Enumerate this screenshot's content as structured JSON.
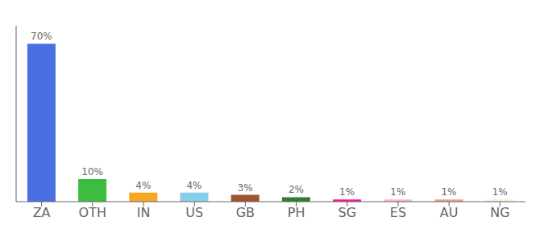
{
  "chart_data": {
    "type": "bar",
    "categories": [
      "ZA",
      "OTH",
      "IN",
      "US",
      "GB",
      "PH",
      "SG",
      "ES",
      "AU",
      "NG"
    ],
    "values": [
      70,
      10,
      4,
      4,
      3,
      2,
      1,
      1,
      1,
      1
    ],
    "value_labels": [
      "70%",
      "10%",
      "4%",
      "4%",
      "3%",
      "2%",
      "1%",
      "1%",
      "1%",
      "1%"
    ],
    "colors": [
      "#4A6FE3",
      "#3DBD3D",
      "#F5A623",
      "#87CEEB",
      "#A0522D",
      "#2E7D32",
      "#FF1493",
      "#FFB6C1",
      "#E8A090",
      "#F5F0DC"
    ],
    "ylim": [
      0,
      78
    ],
    "yticks": [],
    "grid": false,
    "data_labels": true,
    "tick_labels": "x"
  }
}
